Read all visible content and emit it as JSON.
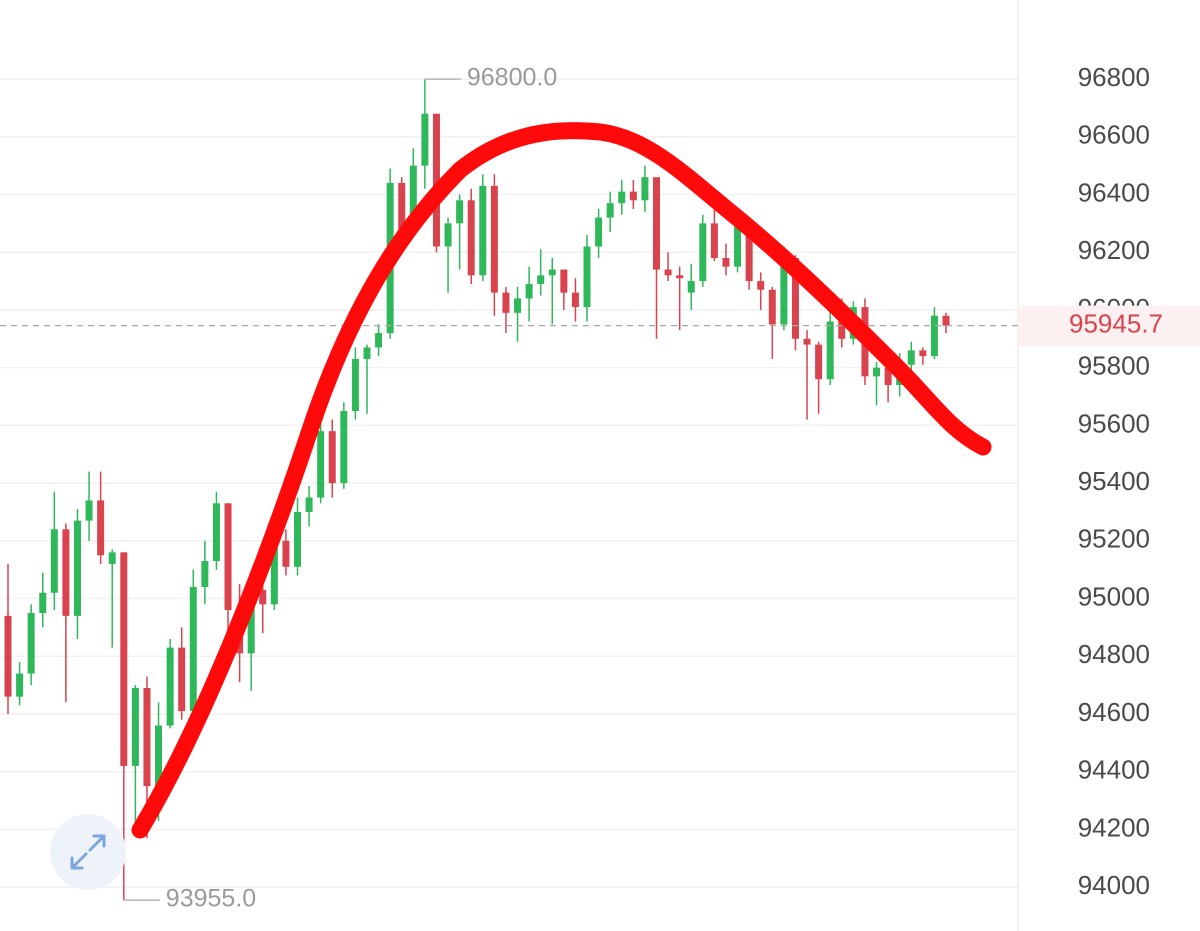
{
  "chart_data": {
    "type": "candlestick",
    "ylim": [
      93848,
      97074
    ],
    "yticks": [
      94000,
      94200,
      94400,
      94600,
      94800,
      95000,
      95200,
      95400,
      95600,
      95800,
      96000,
      96200,
      96400,
      96600,
      96800
    ],
    "grid": true,
    "up_color": "#2fb85a",
    "down_color": "#d9434e",
    "open": [
      94940,
      94660,
      94740,
      94950,
      95020,
      95240,
      94940,
      95270,
      95340,
      95120,
      95160,
      94420,
      94690,
      94350,
      94560,
      94830,
      94610,
      95040,
      95130,
      95330,
      94960,
      94810,
      95030,
      94980,
      95200,
      95110,
      95300,
      95350,
      95580,
      95400,
      95650,
      95830,
      95870,
      95920,
      96440,
      96280,
      96500,
      96680,
      96220,
      96300,
      96380,
      96120,
      96430,
      96060,
      95990,
      96040,
      96090,
      96120,
      96140,
      96060,
      96010,
      96220,
      96320,
      96370,
      96410,
      96380,
      96460,
      96140,
      96120,
      96060,
      96100,
      96300,
      96180,
      96150,
      96290,
      96100,
      96070,
      95950,
      96180,
      95900,
      95880,
      95760,
      95960,
      95900,
      96010,
      95770,
      95800,
      95740,
      95810,
      95860,
      95840,
      95980
    ],
    "high": [
      95120,
      94780,
      94980,
      95090,
      95370,
      95260,
      95310,
      95440,
      95440,
      95170,
      95160,
      94700,
      94730,
      94640,
      94860,
      94900,
      95100,
      95200,
      95370,
      95330,
      95050,
      95080,
      95150,
      95250,
      95240,
      95350,
      95390,
      95620,
      95620,
      95680,
      95870,
      95880,
      95950,
      96490,
      96460,
      96560,
      96800,
      96680,
      96320,
      96400,
      96420,
      96470,
      96470,
      96080,
      96080,
      96150,
      96210,
      96180,
      96140,
      96110,
      96260,
      96350,
      96410,
      96450,
      96450,
      96500,
      96460,
      96200,
      96150,
      96160,
      96330,
      96350,
      96230,
      96350,
      96320,
      96130,
      96080,
      96220,
      96190,
      95930,
      95890,
      96000,
      96040,
      96030,
      96040,
      95820,
      95830,
      95850,
      95890,
      95870,
      96010,
      95990
    ],
    "low": [
      94600,
      94630,
      94700,
      94900,
      94960,
      94640,
      94860,
      95200,
      95120,
      94830,
      93955,
      94190,
      94170,
      94230,
      94550,
      94580,
      94600,
      94980,
      95100,
      94870,
      94710,
      94680,
      94880,
      94960,
      95080,
      95080,
      95250,
      95330,
      95350,
      95380,
      95620,
      95640,
      95840,
      95900,
      96270,
      96260,
      96420,
      96200,
      96060,
      96140,
      96090,
      96100,
      95980,
      95920,
      95890,
      95960,
      96050,
      95950,
      96000,
      95960,
      95960,
      96180,
      96270,
      96330,
      96350,
      96340,
      95900,
      96100,
      95930,
      96000,
      96080,
      96170,
      96120,
      96130,
      96070,
      96000,
      95830,
      95930,
      95860,
      95620,
      95640,
      95740,
      95870,
      95880,
      95740,
      95670,
      95680,
      95700,
      95760,
      95810,
      95830,
      95920
    ],
    "close": [
      94660,
      94740,
      94950,
      95020,
      95240,
      94940,
      95270,
      95340,
      95150,
      95160,
      94420,
      94690,
      94350,
      94560,
      94830,
      94610,
      95040,
      95130,
      95330,
      94960,
      94810,
      95030,
      94980,
      95200,
      95110,
      95300,
      95350,
      95580,
      95400,
      95650,
      95830,
      95870,
      95920,
      96440,
      96280,
      96500,
      96680,
      96220,
      96300,
      96380,
      96120,
      96430,
      96060,
      95990,
      96040,
      96090,
      96120,
      96140,
      96060,
      96010,
      96220,
      96320,
      96370,
      96410,
      96380,
      96460,
      96140,
      96120,
      96110,
      96100,
      96300,
      96180,
      96150,
      96290,
      96100,
      96070,
      95950,
      96180,
      95900,
      95880,
      95760,
      95960,
      95900,
      96010,
      95770,
      95800,
      95740,
      95810,
      95860,
      95840,
      95980,
      95945.7
    ],
    "max_label": {
      "value": 96800,
      "label": "96800.0"
    },
    "min_label": {
      "value": 93955,
      "label": "93955.0"
    },
    "last_price": {
      "value": 95945.7,
      "label": "95945.7"
    }
  }
}
